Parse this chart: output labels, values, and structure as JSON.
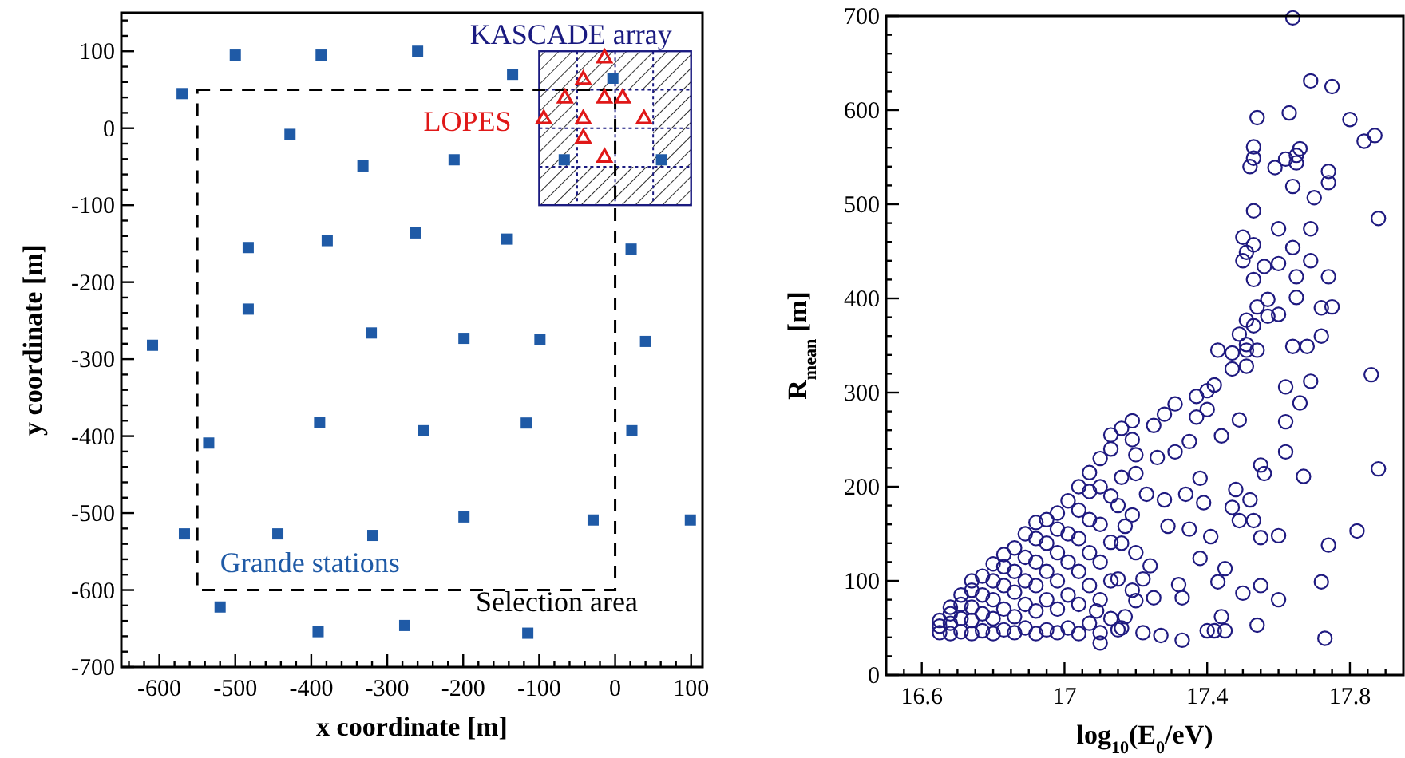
{
  "chart_data": [
    {
      "type": "scatter",
      "xlabel": "x coordinate [m]",
      "ylabel": "y coordinate [m]",
      "xlim": [
        -650,
        115
      ],
      "ylim": [
        -700,
        150
      ],
      "xticks": [
        {
          "value": -640,
          "label": null
        },
        {
          "value": -620,
          "label": null
        },
        -600,
        {
          "value": -580,
          "label": null
        },
        {
          "value": -560,
          "label": null
        },
        {
          "value": -540,
          "label": null
        },
        {
          "value": -520,
          "label": null
        },
        -500,
        {
          "value": -480,
          "label": null
        },
        {
          "value": -460,
          "label": null
        },
        {
          "value": -440,
          "label": null
        },
        {
          "value": -420,
          "label": null
        },
        -400,
        {
          "value": -380,
          "label": null
        },
        {
          "value": -360,
          "label": null
        },
        {
          "value": -340,
          "label": null
        },
        {
          "value": -320,
          "label": null
        },
        -300,
        {
          "value": -280,
          "label": null
        },
        {
          "value": -260,
          "label": null
        },
        {
          "value": -240,
          "label": null
        },
        {
          "value": -220,
          "label": null
        },
        -200,
        {
          "value": -180,
          "label": null
        },
        {
          "value": -160,
          "label": null
        },
        {
          "value": -140,
          "label": null
        },
        {
          "value": -120,
          "label": null
        },
        -100,
        {
          "value": -80,
          "label": null
        },
        {
          "value": -60,
          "label": null
        },
        {
          "value": -40,
          "label": null
        },
        {
          "value": -20,
          "label": null
        },
        0,
        {
          "value": 20,
          "label": null
        },
        {
          "value": 40,
          "label": null
        },
        {
          "value": 60,
          "label": null
        },
        {
          "value": 80,
          "label": null
        },
        100
      ],
      "yticks": [
        -700,
        {
          "value": -680,
          "label": null
        },
        {
          "value": -660,
          "label": null
        },
        {
          "value": -640,
          "label": null
        },
        {
          "value": -620,
          "label": null
        },
        -600,
        {
          "value": -580,
          "label": null
        },
        {
          "value": -560,
          "label": null
        },
        {
          "value": -540,
          "label": null
        },
        {
          "value": -520,
          "label": null
        },
        -500,
        {
          "value": -480,
          "label": null
        },
        {
          "value": -460,
          "label": null
        },
        {
          "value": -440,
          "label": null
        },
        {
          "value": -420,
          "label": null
        },
        -400,
        {
          "value": -380,
          "label": null
        },
        {
          "value": -360,
          "label": null
        },
        {
          "value": -340,
          "label": null
        },
        {
          "value": -320,
          "label": null
        },
        -300,
        {
          "value": -280,
          "label": null
        },
        {
          "value": -260,
          "label": null
        },
        {
          "value": -240,
          "label": null
        },
        {
          "value": -220,
          "label": null
        },
        -200,
        {
          "value": -180,
          "label": null
        },
        {
          "value": -160,
          "label": null
        },
        {
          "value": -140,
          "label": null
        },
        {
          "value": -120,
          "label": null
        },
        -100,
        {
          "value": -80,
          "label": null
        },
        {
          "value": -60,
          "label": null
        },
        {
          "value": -40,
          "label": null
        },
        {
          "value": -20,
          "label": null
        },
        0,
        {
          "value": 20,
          "label": null
        },
        {
          "value": 40,
          "label": null
        },
        {
          "value": 60,
          "label": null
        },
        {
          "value": 80,
          "label": null
        },
        100,
        {
          "value": 120,
          "label": null
        },
        {
          "value": 140,
          "label": null
        }
      ],
      "series": [
        {
          "color": "#1f5aa6",
          "marker": "square",
          "x": [
            -570,
            -500,
            -387,
            -260,
            -135,
            -3,
            -428,
            -332,
            -212,
            -67,
            61,
            -483,
            -379,
            -263,
            -143,
            21,
            -483,
            -609,
            -321,
            -199,
            -99,
            40,
            -535,
            -389,
            -252,
            -117,
            22,
            -567,
            -444,
            -319,
            -199,
            -29,
            99,
            -520,
            -391,
            -277,
            -115
          ],
          "values": [
            45,
            95,
            95,
            100,
            70,
            65,
            -8,
            -49,
            -41,
            -41,
            -41,
            -155,
            -146,
            -136,
            -144,
            -157,
            -235,
            -282,
            -266,
            -273,
            -275,
            -277,
            -409,
            -382,
            -393,
            -383,
            -393,
            -527,
            -527,
            -529,
            -505,
            -509,
            -509,
            -622,
            -654,
            -646,
            -656
          ]
        },
        {
          "color": "#e01818",
          "marker": "triangle",
          "x": [
            -14,
            -42,
            -66,
            -14,
            10,
            -94,
            -42,
            38,
            -42,
            -14
          ],
          "values": [
            92,
            64,
            40,
            40,
            40,
            13,
            13,
            13,
            -12,
            -37
          ]
        }
      ],
      "annotations": [
        "Grande stations",
        "LOPES",
        "KASCADE array",
        "Selection area"
      ]
    },
    {
      "type": "scatter",
      "xlabel": "log$_{10}$(E$_{0}$/eV)",
      "ylabel": "R$_{mean}$ [m]",
      "xlim": [
        16.5,
        17.95
      ],
      "ylim": [
        0,
        700
      ],
      "xticks": [
        {
          "value": 16.55,
          "label": null
        },
        16.6,
        {
          "value": 16.65,
          "label": null
        },
        {
          "value": 16.7,
          "label": null
        },
        {
          "value": 16.75,
          "label": null
        },
        {
          "value": 16.8,
          "label": null
        },
        {
          "value": 16.85,
          "label": null
        },
        {
          "value": 16.9,
          "label": null
        },
        {
          "value": 16.95,
          "label": null
        },
        17,
        {
          "value": 17.05,
          "label": null
        },
        {
          "value": 17.1,
          "label": null
        },
        {
          "value": 17.15,
          "label": null
        },
        {
          "value": 17.2,
          "label": null
        },
        {
          "value": 17.25,
          "label": null
        },
        {
          "value": 17.3,
          "label": null
        },
        {
          "value": 17.35,
          "label": null
        },
        17.4,
        {
          "value": 17.45,
          "label": null
        },
        {
          "value": 17.5,
          "label": null
        },
        {
          "value": 17.55,
          "label": null
        },
        {
          "value": 17.6,
          "label": null
        },
        {
          "value": 17.65,
          "label": null
        },
        {
          "value": 17.7,
          "label": null
        },
        {
          "value": 17.75,
          "label": null
        },
        17.8,
        {
          "value": 17.85,
          "label": null
        },
        {
          "value": 17.9,
          "label": null
        }
      ],
      "yticks": [
        0,
        {
          "value": 20,
          "label": null
        },
        {
          "value": 40,
          "label": null
        },
        {
          "value": 60,
          "label": null
        },
        {
          "value": 80,
          "label": null
        },
        100,
        {
          "value": 120,
          "label": null
        },
        {
          "value": 140,
          "label": null
        },
        {
          "value": 160,
          "label": null
        },
        {
          "value": 180,
          "label": null
        },
        200,
        {
          "value": 220,
          "label": null
        },
        {
          "value": 240,
          "label": null
        },
        {
          "value": 260,
          "label": null
        },
        {
          "value": 280,
          "label": null
        },
        300,
        {
          "value": 320,
          "label": null
        },
        {
          "value": 340,
          "label": null
        },
        {
          "value": 360,
          "label": null
        },
        {
          "value": 380,
          "label": null
        },
        400,
        {
          "value": 420,
          "label": null
        },
        {
          "value": 440,
          "label": null
        },
        {
          "value": 460,
          "label": null
        },
        {
          "value": 480,
          "label": null
        },
        500,
        {
          "value": 520,
          "label": null
        },
        {
          "value": 540,
          "label": null
        },
        {
          "value": 560,
          "label": null
        },
        {
          "value": 580,
          "label": null
        },
        600,
        {
          "value": 620,
          "label": null
        },
        {
          "value": 640,
          "label": null
        },
        {
          "value": 660,
          "label": null
        },
        {
          "value": 680,
          "label": null
        },
        700
      ],
      "series": [
        {
          "color": "#1f1a80",
          "marker": "circle",
          "x": [
            17.64,
            17.69,
            17.75,
            17.54,
            17.63,
            17.8,
            17.84,
            17.87,
            17.53,
            17.53,
            17.52,
            17.59,
            17.62,
            17.65,
            17.66,
            17.65,
            17.64,
            17.74,
            17.74,
            17.7,
            17.88,
            17.53,
            17.6,
            17.69,
            17.5,
            17.53,
            17.51,
            17.64,
            17.5,
            17.56,
            17.6,
            17.69,
            17.65,
            17.53,
            17.74,
            17.65,
            17.57,
            17.54,
            17.72,
            17.75,
            17.51,
            17.53,
            17.57,
            17.6,
            17.72,
            17.49,
            17.51,
            17.64,
            17.68,
            17.43,
            17.47,
            17.51,
            17.54,
            17.47,
            17.51,
            17.86,
            17.69,
            17.62,
            17.66,
            17.62,
            17.62,
            17.67,
            17.88,
            17.82,
            17.6,
            17.74,
            17.72,
            17.6,
            17.73,
            17.54,
            17.55,
            17.5,
            17.55,
            17.53,
            17.49,
            17.55,
            17.56,
            17.52,
            17.48,
            17.47,
            17.44,
            17.49,
            17.44,
            17.45,
            17.42,
            17.4,
            17.45,
            17.43,
            17.38,
            17.41,
            17.39,
            17.4,
            17.42,
            17.37,
            17.4,
            17.38,
            17.35,
            17.33,
            17.27,
            17.22,
            17.15,
            17.1,
            17.33,
            17.32,
            17.25,
            17.2,
            17.24,
            17.22,
            17.29,
            17.35,
            17.28,
            17.23,
            17.34,
            17.31,
            17.26,
            17.2,
            17.37,
            17.28,
            17.31,
            17.25,
            17.2,
            17.15,
            17.17,
            17.13,
            17.2,
            17.15,
            17.09,
            17.17,
            16.65,
            16.65,
            16.65,
            16.68,
            16.68,
            16.68,
            16.68,
            16.71,
            16.71,
            16.71,
            16.71,
            16.74,
            16.74,
            16.74,
            16.74,
            16.74,
            16.77,
            16.77,
            16.77,
            16.77,
            16.8,
            16.8,
            16.8,
            16.8,
            16.8,
            16.83,
            16.83,
            16.83,
            16.83,
            16.83,
            16.86,
            16.86,
            16.86,
            16.86,
            16.86,
            16.89,
            16.89,
            16.89,
            16.89,
            16.89,
            16.92,
            16.92,
            16.92,
            16.92,
            16.92,
            16.92,
            16.95,
            16.95,
            16.95,
            16.95,
            16.95,
            16.98,
            16.98,
            16.98,
            16.98,
            16.98,
            16.98,
            17.01,
            17.01,
            17.01,
            17.01,
            17.01,
            17.04,
            17.04,
            17.04,
            17.04,
            17.04,
            17.04,
            17.07,
            17.07,
            17.07,
            17.07,
            17.07,
            17.07,
            17.1,
            17.1,
            17.1,
            17.1,
            17.1,
            17.1,
            17.13,
            17.13,
            17.13,
            17.13,
            17.13,
            17.16,
            17.16,
            17.16,
            17.16,
            17.19,
            17.19,
            17.19,
            17.19
          ],
          "values": [
            698,
            631,
            625,
            592,
            597,
            590,
            567,
            573,
            561,
            549,
            540,
            539,
            548,
            552,
            559,
            544,
            519,
            535,
            523,
            507,
            485,
            493,
            474,
            474,
            465,
            457,
            449,
            454,
            440,
            434,
            437,
            440,
            423,
            420,
            423,
            401,
            399,
            391,
            390,
            391,
            377,
            371,
            381,
            383,
            360,
            362,
            351,
            349,
            349,
            345,
            342,
            345,
            345,
            325,
            328,
            319,
            312,
            306,
            289,
            269,
            237,
            211,
            219,
            153,
            148,
            138,
            99,
            80,
            39,
            53,
            95,
            87,
            146,
            164,
            164,
            223,
            214,
            186,
            197,
            178,
            254,
            271,
            62,
            47,
            47,
            47,
            113,
            99,
            124,
            147,
            183,
            302,
            308,
            296,
            282,
            209,
            248,
            37,
            42,
            45,
            48,
            34,
            82,
            96,
            82,
            79,
            116,
            102,
            158,
            155,
            186,
            192,
            192,
            237,
            231,
            234,
            274,
            277,
            288,
            265,
            214,
            180,
            158,
            141,
            130,
            102,
            68,
            62,
            45,
            52,
            58,
            44,
            55,
            65,
            72,
            46,
            60,
            75,
            85,
            44,
            58,
            72,
            90,
            100,
            47,
            65,
            85,
            105,
            44,
            60,
            80,
            100,
            118,
            48,
            70,
            95,
            115,
            128,
            45,
            62,
            88,
            110,
            135,
            50,
            75,
            100,
            125,
            150,
            44,
            68,
            95,
            120,
            145,
            162,
            48,
            80,
            110,
            140,
            165,
            45,
            70,
            100,
            130,
            155,
            172,
            50,
            85,
            120,
            150,
            185,
            44,
            75,
            110,
            145,
            175,
            200,
            55,
            95,
            130,
            165,
            195,
            215,
            45,
            80,
            120,
            160,
            200,
            230,
            60,
            100,
            190,
            240,
            255,
            50,
            140,
            210,
            262,
            90,
            170,
            250,
            270
          ]
        }
      ]
    }
  ]
}
